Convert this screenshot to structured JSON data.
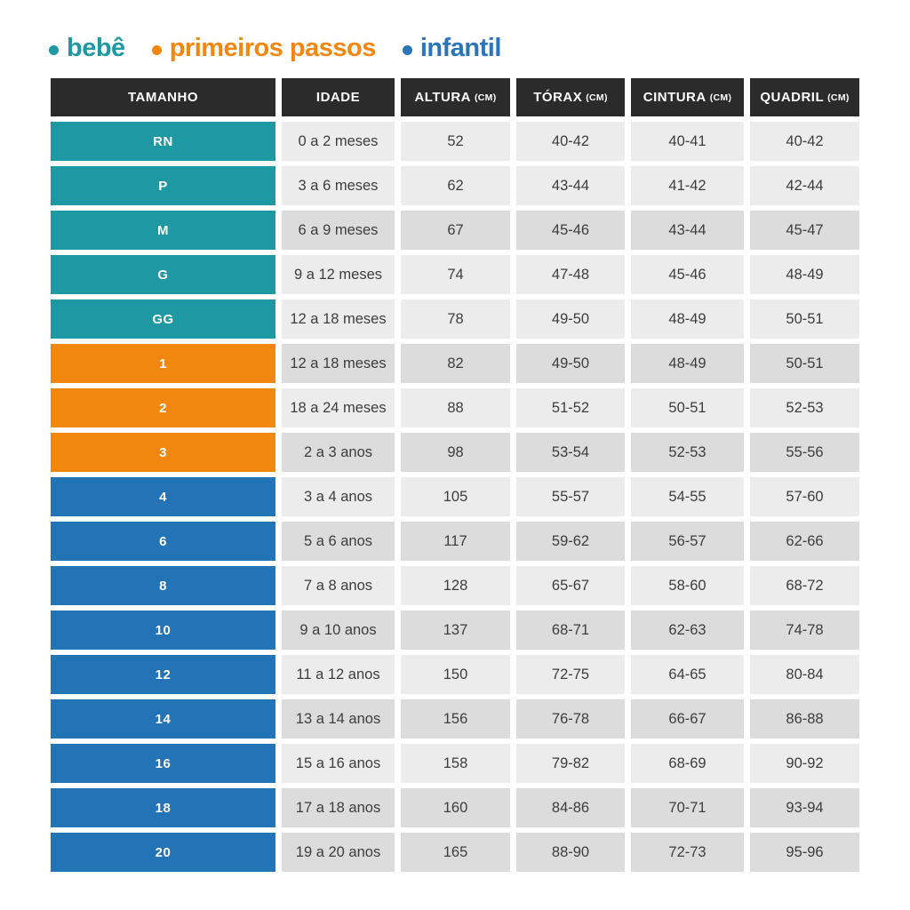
{
  "legend": {
    "items": [
      {
        "label": "bebê",
        "color": "#1e99a3"
      },
      {
        "label": "primeiros passos",
        "color": "#f1870f"
      },
      {
        "label": "infantil",
        "color": "#2a74ba"
      }
    ]
  },
  "colors": {
    "header_bg": "#2b2b2b",
    "row_light": "#ececec",
    "row_dark": "#dcdcdc",
    "groups": {
      "bebe": "#1e99a3",
      "primeiros_passos": "#f1870f",
      "infantil": "#2373b7"
    }
  },
  "table": {
    "headers": [
      {
        "label": "TAMANHO",
        "unit": ""
      },
      {
        "label": "IDADE",
        "unit": ""
      },
      {
        "label": "ALTURA",
        "unit": "(CM)"
      },
      {
        "label": "TÓRAX",
        "unit": "(CM)"
      },
      {
        "label": "CINTURA",
        "unit": "(CM)"
      },
      {
        "label": "QUADRIL",
        "unit": "(CM)"
      }
    ],
    "rows": [
      {
        "size": "RN",
        "group": "bebe",
        "idade": "0 a 2 meses",
        "altura": "52",
        "torax": "40-42",
        "cintura": "40-41",
        "quadril": "40-42",
        "shade": "light"
      },
      {
        "size": "P",
        "group": "bebe",
        "idade": "3 a 6 meses",
        "altura": "62",
        "torax": "43-44",
        "cintura": "41-42",
        "quadril": "42-44",
        "shade": "light"
      },
      {
        "size": "M",
        "group": "bebe",
        "idade": "6 a 9 meses",
        "altura": "67",
        "torax": "45-46",
        "cintura": "43-44",
        "quadril": "45-47",
        "shade": "dark"
      },
      {
        "size": "G",
        "group": "bebe",
        "idade": "9 a 12 meses",
        "altura": "74",
        "torax": "47-48",
        "cintura": "45-46",
        "quadril": "48-49",
        "shade": "light"
      },
      {
        "size": "GG",
        "group": "bebe",
        "idade": "12 a 18 meses",
        "altura": "78",
        "torax": "49-50",
        "cintura": "48-49",
        "quadril": "50-51",
        "shade": "light"
      },
      {
        "size": "1",
        "group": "primeiros_passos",
        "idade": "12 a 18 meses",
        "altura": "82",
        "torax": "49-50",
        "cintura": "48-49",
        "quadril": "50-51",
        "shade": "dark"
      },
      {
        "size": "2",
        "group": "primeiros_passos",
        "idade": "18 a 24 meses",
        "altura": "88",
        "torax": "51-52",
        "cintura": "50-51",
        "quadril": "52-53",
        "shade": "light"
      },
      {
        "size": "3",
        "group": "primeiros_passos",
        "idade": "2 a 3 anos",
        "altura": "98",
        "torax": "53-54",
        "cintura": "52-53",
        "quadril": "55-56",
        "shade": "dark"
      },
      {
        "size": "4",
        "group": "infantil",
        "idade": "3 a 4 anos",
        "altura": "105",
        "torax": "55-57",
        "cintura": "54-55",
        "quadril": "57-60",
        "shade": "light"
      },
      {
        "size": "6",
        "group": "infantil",
        "idade": "5 a 6 anos",
        "altura": "117",
        "torax": "59-62",
        "cintura": "56-57",
        "quadril": "62-66",
        "shade": "dark"
      },
      {
        "size": "8",
        "group": "infantil",
        "idade": "7 a 8 anos",
        "altura": "128",
        "torax": "65-67",
        "cintura": "58-60",
        "quadril": "68-72",
        "shade": "light"
      },
      {
        "size": "10",
        "group": "infantil",
        "idade": "9 a 10 anos",
        "altura": "137",
        "torax": "68-71",
        "cintura": "62-63",
        "quadril": "74-78",
        "shade": "dark"
      },
      {
        "size": "12",
        "group": "infantil",
        "idade": "11 a 12 anos",
        "altura": "150",
        "torax": "72-75",
        "cintura": "64-65",
        "quadril": "80-84",
        "shade": "light"
      },
      {
        "size": "14",
        "group": "infantil",
        "idade": "13 a 14 anos",
        "altura": "156",
        "torax": "76-78",
        "cintura": "66-67",
        "quadril": "86-88",
        "shade": "dark"
      },
      {
        "size": "16",
        "group": "infantil",
        "idade": "15 a 16 anos",
        "altura": "158",
        "torax": "79-82",
        "cintura": "68-69",
        "quadril": "90-92",
        "shade": "light"
      },
      {
        "size": "18",
        "group": "infantil",
        "idade": "17 a 18 anos",
        "altura": "160",
        "torax": "84-86",
        "cintura": "70-71",
        "quadril": "93-94",
        "shade": "dark"
      },
      {
        "size": "20",
        "group": "infantil",
        "idade": "19 a 20 anos",
        "altura": "165",
        "torax": "88-90",
        "cintura": "72-73",
        "quadril": "95-96",
        "shade": "dark"
      }
    ]
  }
}
